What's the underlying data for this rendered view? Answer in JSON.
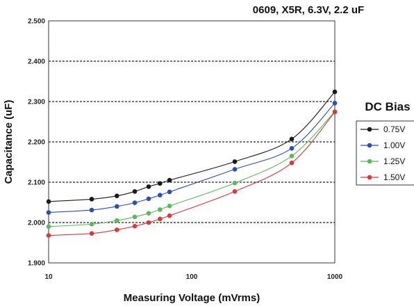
{
  "chart_data": {
    "type": "line",
    "title": "0609, X5R, 6.3V, 2.2 uF",
    "xlabel": "Measuring Voltage (mVrms)",
    "ylabel": "Capacitance (uF)",
    "x_scale": "log",
    "xlim": [
      10,
      1000
    ],
    "ylim": [
      1.9,
      2.5
    ],
    "x_ticks": [
      "10",
      "100",
      "1000"
    ],
    "y_ticks": [
      "1.900",
      "2.000",
      "2.100",
      "2.200",
      "2.300",
      "2.400",
      "2.500"
    ],
    "grid": "horizontal dashed",
    "legend": {
      "title": "DC Bias",
      "placement": "right"
    },
    "x": [
      10,
      20,
      30,
      40,
      50,
      60,
      70,
      200,
      500,
      1000
    ],
    "series": [
      {
        "name": "0.75V",
        "color": "#1a1a1a",
        "values": [
          2.052,
          2.058,
          2.066,
          2.077,
          2.089,
          2.097,
          2.105,
          2.151,
          2.207,
          2.324
        ]
      },
      {
        "name": "1.00V",
        "color": "#2a4fb0",
        "values": [
          2.025,
          2.031,
          2.04,
          2.049,
          2.059,
          2.068,
          2.076,
          2.132,
          2.184,
          2.296
        ]
      },
      {
        "name": "1.25V",
        "color": "#5cb85c",
        "values": [
          1.99,
          1.996,
          2.005,
          2.014,
          2.023,
          2.032,
          2.041,
          2.098,
          2.165,
          2.275
        ]
      },
      {
        "name": "1.50V",
        "color": "#d63a3a",
        "values": [
          1.968,
          1.973,
          1.982,
          1.991,
          2.0,
          2.009,
          2.017,
          2.077,
          2.148,
          2.274
        ]
      }
    ]
  }
}
